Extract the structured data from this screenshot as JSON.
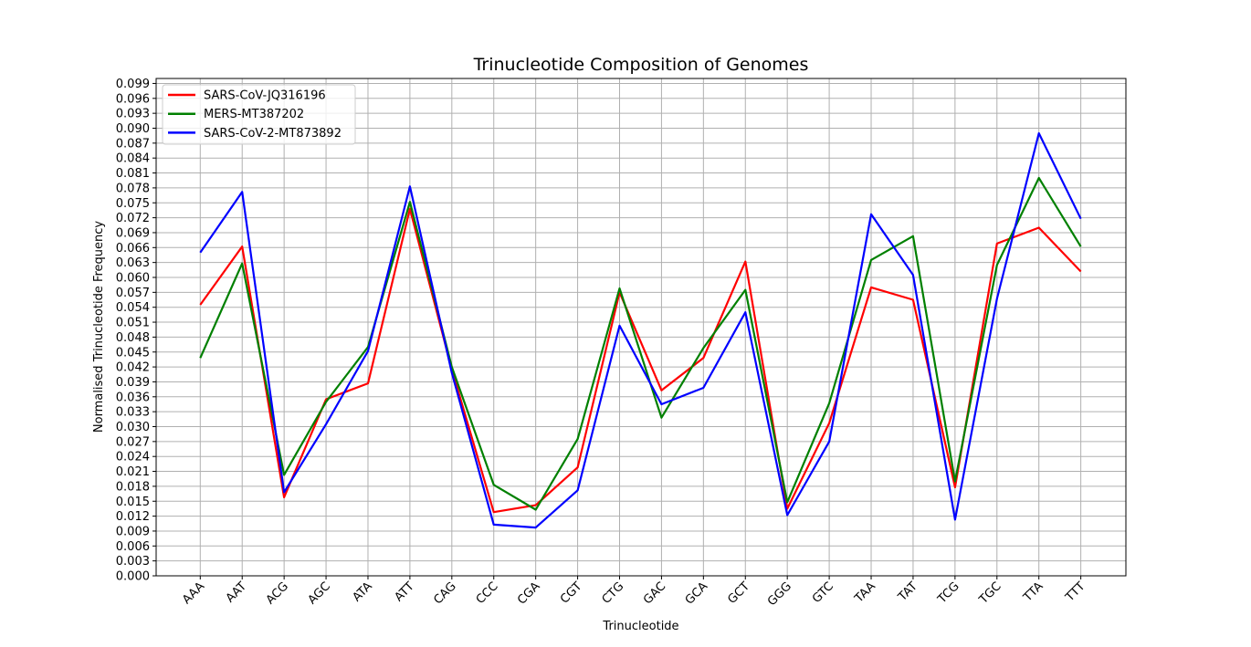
{
  "chart_data": {
    "type": "line",
    "title": "Trinucleotide Composition of Genomes",
    "xlabel": "Trinucleotide",
    "ylabel": "Normalised Trinucleotide Frequency",
    "grid": true,
    "legend_position": "top-left",
    "ylim": [
      0.0,
      0.1
    ],
    "yticks": [
      "0.000",
      "0.003",
      "0.006",
      "0.009",
      "0.012",
      "0.015",
      "0.018",
      "0.021",
      "0.024",
      "0.027",
      "0.030",
      "0.033",
      "0.036",
      "0.039",
      "0.042",
      "0.045",
      "0.048",
      "0.051",
      "0.054",
      "0.057",
      "0.060",
      "0.063",
      "0.066",
      "0.069",
      "0.072",
      "0.075",
      "0.078",
      "0.081",
      "0.084",
      "0.087",
      "0.090",
      "0.093",
      "0.096",
      "0.099"
    ],
    "categories": [
      "AAA",
      "AAT",
      "ACG",
      "AGC",
      "ATA",
      "ATT",
      "CAG",
      "CCC",
      "CGA",
      "CGT",
      "CTG",
      "GAC",
      "GCA",
      "GCT",
      "GGG",
      "GTC",
      "TAA",
      "TAT",
      "TCG",
      "TGC",
      "TTA",
      "TTT"
    ],
    "series": [
      {
        "name": "SARS-CoV-JQ316196",
        "color": "#ff0000",
        "values": [
          0.0545,
          0.0662,
          0.0158,
          0.0355,
          0.0387,
          0.0738,
          0.0415,
          0.0128,
          0.0142,
          0.0218,
          0.057,
          0.0373,
          0.0438,
          0.0632,
          0.0135,
          0.0307,
          0.058,
          0.0555,
          0.0178,
          0.0668,
          0.07,
          0.0612
        ]
      },
      {
        "name": "MERS-MT387202",
        "color": "#008000",
        "values": [
          0.0438,
          0.0628,
          0.0203,
          0.035,
          0.046,
          0.0752,
          0.042,
          0.0183,
          0.0133,
          0.0275,
          0.0578,
          0.0318,
          0.0458,
          0.0575,
          0.0148,
          0.0347,
          0.0635,
          0.0683,
          0.019,
          0.0625,
          0.08,
          0.0662
        ]
      },
      {
        "name": "SARS-CoV-2-MT873892",
        "color": "#0000ff",
        "values": [
          0.065,
          0.0772,
          0.0168,
          0.0305,
          0.0452,
          0.0783,
          0.0408,
          0.0103,
          0.0097,
          0.0172,
          0.0503,
          0.0345,
          0.0378,
          0.053,
          0.0122,
          0.027,
          0.0727,
          0.0605,
          0.0113,
          0.0557,
          0.089,
          0.0718
        ]
      }
    ]
  }
}
